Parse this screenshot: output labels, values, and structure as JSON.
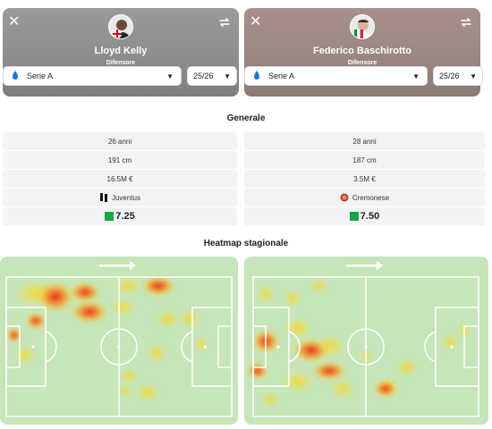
{
  "players": [
    {
      "name": "Lloyd Kelly",
      "role": "Difensore",
      "flag_icon": "england-flag-icon",
      "league": "Serie A",
      "season": "25/26",
      "age": "26 anni",
      "height": "191 cm",
      "value": "16.5M €",
      "club": "Juventus",
      "club_icon": "juventus-logo-icon",
      "rating": "7.25",
      "rating_color": "#14a842"
    },
    {
      "name": "Federico Baschirotto",
      "role": "Difensore",
      "flag_icon": "italy-flag-icon",
      "league": "Serie A",
      "season": "25/26",
      "age": "28 anni",
      "height": "187 cm",
      "value": "3.5M €",
      "club": "Cremonese",
      "club_icon": "cremonese-logo-icon",
      "rating": "7.50",
      "rating_color": "#14a842"
    }
  ],
  "sections": {
    "general": "Generale",
    "heatmap": "Heatmap stagionale"
  },
  "colors": {
    "pitch": "#c6e5b9",
    "heat_hot": "#e8161c",
    "heat_warm": "#f58a1f",
    "heat_cool": "#f7e93a"
  }
}
